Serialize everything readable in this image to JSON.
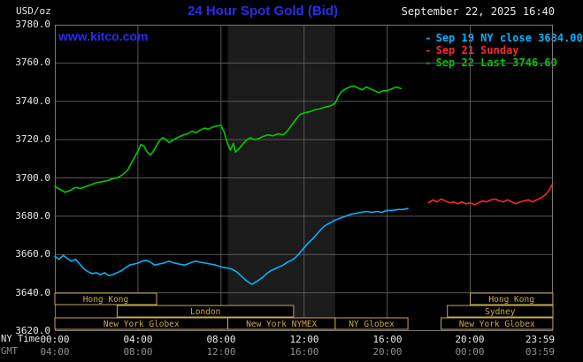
{
  "page": {
    "title": "24 Hour Spot Gold (Bid)",
    "unit_label": "USD/oz",
    "datetime": "September 22, 2025 16:40",
    "watermark": "www.kitco.com",
    "ny_time_label": "NY Time",
    "gmt_label": "GMT"
  },
  "legend": [
    {
      "dash": "-",
      "label": "Sep 19 NY close 3684.00",
      "color": "#00b4ff"
    },
    {
      "dash": "-",
      "label": "Sep 21 Sunday",
      "color": "#ff2626"
    },
    {
      "dash": "-",
      "label": "Sep 22 Last 3746.60",
      "color": "#00cc00"
    }
  ],
  "colors": {
    "background": "#000000",
    "title": "#2b2bee",
    "text": "#e8e8e8",
    "text_dim": "#8f8f8f",
    "grid": "#585858",
    "border": "#787878",
    "band": "#1b1b1b",
    "session": "#c9a94e"
  },
  "chart_data": {
    "type": "line",
    "title": "24 Hour Spot Gold (Bid)",
    "ylabel": "USD/oz",
    "ylim": [
      3620,
      3780
    ],
    "grid": true,
    "axis": {
      "y_min": 3620,
      "y_max": 3780,
      "y_step": 20,
      "y_tick_labels": [
        "3780.0",
        "3760.0",
        "3740.0",
        "3720.0",
        "3700.0",
        "3680.0",
        "3660.0",
        "3640.0",
        "3620.0"
      ],
      "x_min": 0,
      "x_max": 23.983,
      "x_ticks": [
        0,
        4,
        8,
        12,
        16,
        20,
        23.983
      ],
      "x_tick_labels_ny": [
        "00:00",
        "04:00",
        "08:00",
        "12:00",
        "16:00",
        "20:00",
        "23:59"
      ],
      "x_tick_labels_gmt": [
        "04:00",
        "08:00",
        "12:00",
        "16:00",
        "20:00",
        "00:00",
        "03:59"
      ]
    },
    "nymex_band": {
      "start": 8.33,
      "end": 13.5
    },
    "sessions": [
      {
        "row": 0,
        "start": 0,
        "end": 4.9,
        "label": "Hong Kong"
      },
      {
        "row": 0,
        "start": 20,
        "end": 23.98,
        "label": "Hong Kong"
      },
      {
        "row": 1,
        "start": 3,
        "end": 11.5,
        "label": "London"
      },
      {
        "row": 1,
        "start": 18.9,
        "end": 23.98,
        "label": "Sydney"
      },
      {
        "row": 2,
        "start": 0,
        "end": 8.33,
        "label": "New York Globex"
      },
      {
        "row": 2,
        "start": 8.33,
        "end": 13.5,
        "label": "New York NYMEX"
      },
      {
        "row": 2,
        "start": 13.5,
        "end": 17.0,
        "label": "NY Globex"
      },
      {
        "row": 2,
        "start": 18.6,
        "end": 23.98,
        "label": "New York Globex"
      }
    ],
    "series": [
      {
        "id": "sep19",
        "name": "Sep 19 NY close",
        "close": 3684.0,
        "color": "#00b4ff",
        "points": [
          [
            0,
            3659
          ],
          [
            0.2,
            3657.5
          ],
          [
            0.4,
            3659.5
          ],
          [
            0.6,
            3658
          ],
          [
            0.8,
            3656.5
          ],
          [
            1,
            3657.5
          ],
          [
            1.2,
            3655
          ],
          [
            1.4,
            3652.5
          ],
          [
            1.6,
            3651
          ],
          [
            1.8,
            3650
          ],
          [
            2,
            3650.5
          ],
          [
            2.2,
            3649.5
          ],
          [
            2.4,
            3650.5
          ],
          [
            2.6,
            3649
          ],
          [
            2.8,
            3649.5
          ],
          [
            3,
            3650.5
          ],
          [
            3.2,
            3651.5
          ],
          [
            3.4,
            3653
          ],
          [
            3.6,
            3654.5
          ],
          [
            3.8,
            3655
          ],
          [
            4,
            3655.5
          ],
          [
            4.2,
            3656.5
          ],
          [
            4.4,
            3657
          ],
          [
            4.6,
            3656
          ],
          [
            4.8,
            3654.5
          ],
          [
            5,
            3655
          ],
          [
            5.25,
            3655.5
          ],
          [
            5.5,
            3656.5
          ],
          [
            5.75,
            3655.5
          ],
          [
            6,
            3655
          ],
          [
            6.25,
            3654.5
          ],
          [
            6.5,
            3655.5
          ],
          [
            6.75,
            3656.5
          ],
          [
            7,
            3656
          ],
          [
            7.25,
            3655.5
          ],
          [
            7.5,
            3655
          ],
          [
            7.75,
            3654.5
          ],
          [
            8,
            3653.5
          ],
          [
            8.25,
            3653
          ],
          [
            8.5,
            3652.5
          ],
          [
            8.75,
            3651
          ],
          [
            9,
            3648.5
          ],
          [
            9.2,
            3646.5
          ],
          [
            9.4,
            3645
          ],
          [
            9.5,
            3644.5
          ],
          [
            9.65,
            3645.5
          ],
          [
            9.8,
            3646.5
          ],
          [
            10,
            3648
          ],
          [
            10.2,
            3650
          ],
          [
            10.4,
            3651.5
          ],
          [
            10.6,
            3652.5
          ],
          [
            10.8,
            3653.5
          ],
          [
            11,
            3654.5
          ],
          [
            11.2,
            3656
          ],
          [
            11.4,
            3657
          ],
          [
            11.6,
            3658.5
          ],
          [
            11.8,
            3661
          ],
          [
            12,
            3663.5
          ],
          [
            12.2,
            3666
          ],
          [
            12.4,
            3668
          ],
          [
            12.6,
            3670.5
          ],
          [
            12.8,
            3673
          ],
          [
            13,
            3675
          ],
          [
            13.25,
            3676.5
          ],
          [
            13.5,
            3678
          ],
          [
            13.75,
            3679
          ],
          [
            14,
            3680
          ],
          [
            14.25,
            3681
          ],
          [
            14.5,
            3681.5
          ],
          [
            14.75,
            3682
          ],
          [
            15,
            3682.5
          ],
          [
            15.25,
            3682
          ],
          [
            15.5,
            3682.5
          ],
          [
            15.75,
            3682
          ],
          [
            16,
            3683
          ],
          [
            16.25,
            3683
          ],
          [
            16.5,
            3683.5
          ],
          [
            16.75,
            3683.5
          ],
          [
            17,
            3684
          ]
        ]
      },
      {
        "id": "sep21",
        "name": "Sep 21 Sunday",
        "color": "#ff2626",
        "points": [
          [
            18,
            3687
          ],
          [
            18.2,
            3688.5
          ],
          [
            18.4,
            3687.5
          ],
          [
            18.6,
            3689
          ],
          [
            18.8,
            3688
          ],
          [
            19,
            3687
          ],
          [
            19.2,
            3687.5
          ],
          [
            19.4,
            3686.5
          ],
          [
            19.6,
            3687.5
          ],
          [
            19.8,
            3686.5
          ],
          [
            20,
            3687
          ],
          [
            20.2,
            3686
          ],
          [
            20.4,
            3687
          ],
          [
            20.6,
            3688
          ],
          [
            20.8,
            3687.5
          ],
          [
            21,
            3688.5
          ],
          [
            21.2,
            3689
          ],
          [
            21.4,
            3688
          ],
          [
            21.6,
            3687.5
          ],
          [
            21.8,
            3688.5
          ],
          [
            22,
            3687.5
          ],
          [
            22.2,
            3686.5
          ],
          [
            22.4,
            3687.5
          ],
          [
            22.6,
            3688
          ],
          [
            22.8,
            3688.5
          ],
          [
            23,
            3687.5
          ],
          [
            23.2,
            3688.5
          ],
          [
            23.4,
            3689.5
          ],
          [
            23.6,
            3691
          ],
          [
            23.8,
            3693.5
          ],
          [
            23.98,
            3697
          ]
        ]
      },
      {
        "id": "sep22",
        "name": "Sep 22 Last",
        "last": 3746.6,
        "color": "#00cc00",
        "points": [
          [
            0,
            3695.5
          ],
          [
            0.25,
            3694
          ],
          [
            0.5,
            3692.5
          ],
          [
            0.75,
            3693.5
          ],
          [
            1,
            3695
          ],
          [
            1.25,
            3694.5
          ],
          [
            1.5,
            3695.5
          ],
          [
            1.75,
            3696.5
          ],
          [
            2,
            3697.5
          ],
          [
            2.25,
            3698
          ],
          [
            2.5,
            3698.5
          ],
          [
            2.75,
            3699.5
          ],
          [
            3,
            3700
          ],
          [
            3.25,
            3701.5
          ],
          [
            3.5,
            3704
          ],
          [
            3.75,
            3709
          ],
          [
            4,
            3714
          ],
          [
            4.15,
            3717.5
          ],
          [
            4.3,
            3716.5
          ],
          [
            4.45,
            3713.5
          ],
          [
            4.6,
            3712
          ],
          [
            4.75,
            3714
          ],
          [
            4.9,
            3717
          ],
          [
            5.05,
            3719.5
          ],
          [
            5.2,
            3721
          ],
          [
            5.35,
            3720
          ],
          [
            5.5,
            3718.5
          ],
          [
            5.65,
            3719.5
          ],
          [
            5.8,
            3720.5
          ],
          [
            6,
            3721.5
          ],
          [
            6.2,
            3722.5
          ],
          [
            6.4,
            3723
          ],
          [
            6.6,
            3724.5
          ],
          [
            6.8,
            3723.5
          ],
          [
            7,
            3725
          ],
          [
            7.2,
            3726
          ],
          [
            7.4,
            3725.5
          ],
          [
            7.6,
            3726.5
          ],
          [
            7.8,
            3727
          ],
          [
            8,
            3727.5
          ],
          [
            8.15,
            3724
          ],
          [
            8.3,
            3718.5
          ],
          [
            8.45,
            3714.5
          ],
          [
            8.6,
            3718
          ],
          [
            8.7,
            3713.5
          ],
          [
            8.85,
            3715
          ],
          [
            9,
            3717
          ],
          [
            9.2,
            3719.5
          ],
          [
            9.4,
            3721
          ],
          [
            9.6,
            3720
          ],
          [
            9.8,
            3720.5
          ],
          [
            10,
            3721.5
          ],
          [
            10.25,
            3722.5
          ],
          [
            10.5,
            3722
          ],
          [
            10.75,
            3723
          ],
          [
            11,
            3722.5
          ],
          [
            11.2,
            3724.5
          ],
          [
            11.4,
            3727.5
          ],
          [
            11.6,
            3730.5
          ],
          [
            11.8,
            3733
          ],
          [
            12,
            3734
          ],
          [
            12.25,
            3734.5
          ],
          [
            12.5,
            3735.5
          ],
          [
            12.75,
            3736
          ],
          [
            13,
            3737
          ],
          [
            13.25,
            3737.5
          ],
          [
            13.5,
            3739
          ],
          [
            13.65,
            3742.5
          ],
          [
            13.8,
            3745
          ],
          [
            14,
            3746.5
          ],
          [
            14.2,
            3747.5
          ],
          [
            14.4,
            3748
          ],
          [
            14.6,
            3747
          ],
          [
            14.8,
            3746
          ],
          [
            15,
            3747.5
          ],
          [
            15.2,
            3746.5
          ],
          [
            15.4,
            3745.5
          ],
          [
            15.6,
            3744.5
          ],
          [
            15.8,
            3745.5
          ],
          [
            16,
            3745.5
          ],
          [
            16.2,
            3746.5
          ],
          [
            16.45,
            3747.5
          ],
          [
            16.67,
            3746.6
          ]
        ]
      }
    ]
  }
}
